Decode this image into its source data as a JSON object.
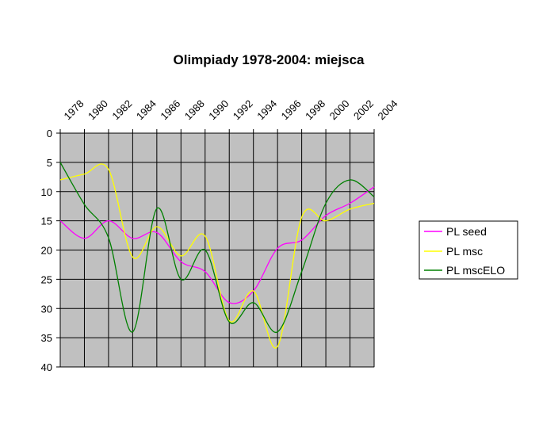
{
  "chart_data": {
    "type": "line",
    "title": "Olimpiady 1978-2004: miejsca",
    "xlabel": "",
    "ylabel": "",
    "categories": [
      "1978",
      "1980",
      "1982",
      "1984",
      "1986",
      "1988",
      "1990",
      "1992",
      "1994",
      "1996",
      "1998",
      "2000",
      "2002",
      "2004"
    ],
    "ylim": [
      0,
      40
    ],
    "y_reversed": true,
    "y_ticks": [
      0,
      5,
      10,
      15,
      20,
      25,
      30,
      35,
      40
    ],
    "grid": true,
    "plot_background": "#c0c0c0",
    "legend_position": "right",
    "series": [
      {
        "name": "PL seed",
        "color": "#ff00ff",
        "values": [
          15,
          18,
          15,
          18,
          17,
          22,
          23.7,
          29,
          27,
          19.7,
          18.3,
          14.1,
          12,
          9.2
        ]
      },
      {
        "name": "PL msc",
        "color": "#ffff00",
        "values": [
          8,
          7,
          6.2,
          21.2,
          16,
          21,
          17.6,
          32.1,
          27,
          36.5,
          14.4,
          15,
          13,
          12
        ]
      },
      {
        "name": "PL mscELO",
        "color": "#008000",
        "values": [
          5,
          12.2,
          17.9,
          34,
          12.9,
          25,
          20,
          32.3,
          29,
          34,
          23.7,
          12,
          8,
          10.9
        ]
      }
    ]
  }
}
